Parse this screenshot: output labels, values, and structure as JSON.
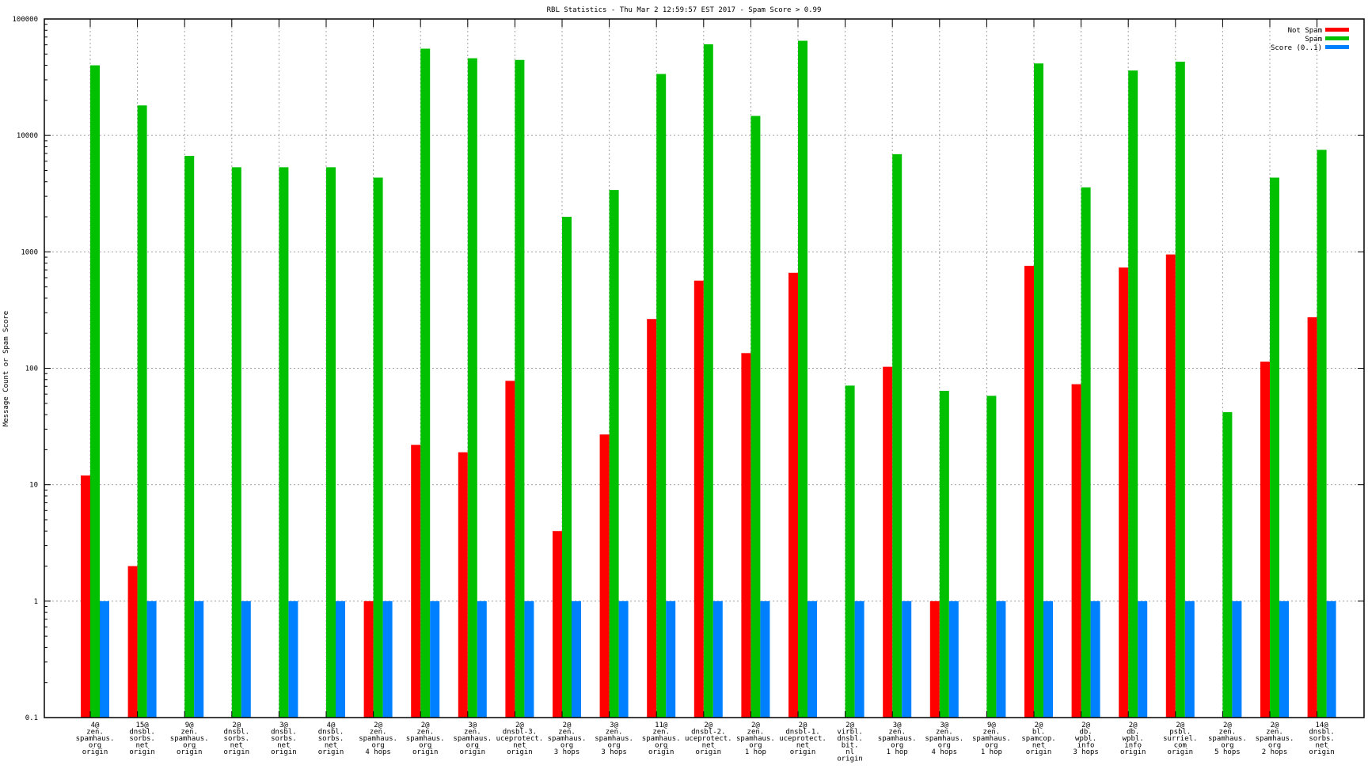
{
  "chart_data": {
    "type": "bar",
    "title": "RBL Statistics - Thu Mar  2 12:59:57 EST 2017 - Spam Score > 0.99",
    "xlabel": "",
    "ylabel": "Message Count or Spam Score",
    "yscale": "log",
    "ylim": [
      0.1,
      100000
    ],
    "yticks": [
      "0.1",
      "1",
      "10",
      "100",
      "1000",
      "10000",
      "100000"
    ],
    "grid": true,
    "legend_position": "top-right",
    "categories": [
      [
        "4@",
        "zen.",
        "spamhaus.",
        "org",
        "origin"
      ],
      [
        "15@",
        "dnsbl.",
        "sorbs.",
        "net",
        "origin"
      ],
      [
        "9@",
        "zen.",
        "spamhaus.",
        "org",
        "origin"
      ],
      [
        "2@",
        "dnsbl.",
        "sorbs.",
        "net",
        "origin"
      ],
      [
        "3@",
        "dnsbl.",
        "sorbs.",
        "net",
        "origin"
      ],
      [
        "4@",
        "dnsbl.",
        "sorbs.",
        "net",
        "origin"
      ],
      [
        "2@",
        "zen.",
        "spamhaus.",
        "org",
        "4 hops"
      ],
      [
        "2@",
        "zen.",
        "spamhaus.",
        "org",
        "origin"
      ],
      [
        "3@",
        "zen.",
        "spamhaus.",
        "org",
        "origin"
      ],
      [
        "2@",
        "dnsbl-3.",
        "uceprotect.",
        "net",
        "origin"
      ],
      [
        "2@",
        "zen.",
        "spamhaus.",
        "org",
        "3 hops"
      ],
      [
        "3@",
        "zen.",
        "spamhaus.",
        "org",
        "3 hops"
      ],
      [
        "11@",
        "zen.",
        "spamhaus.",
        "org",
        "origin"
      ],
      [
        "2@",
        "dnsbl-2.",
        "uceprotect.",
        "net",
        "origin"
      ],
      [
        "2@",
        "zen.",
        "spamhaus.",
        "org",
        "1 hop"
      ],
      [
        "2@",
        "dnsbl-1.",
        "uceprotect.",
        "net",
        "origin"
      ],
      [
        "2@",
        "virbl.",
        "dnsbl.",
        "bit.",
        "nl",
        "origin"
      ],
      [
        "3@",
        "zen.",
        "spamhaus.",
        "org",
        "1 hop"
      ],
      [
        "3@",
        "zen.",
        "spamhaus.",
        "org",
        "4 hops"
      ],
      [
        "9@",
        "zen.",
        "spamhaus.",
        "org",
        "1 hop"
      ],
      [
        "2@",
        "bl.",
        "spamcop.",
        "net",
        "origin"
      ],
      [
        "2@",
        "db.",
        "wpbl.",
        "info",
        "3 hops"
      ],
      [
        "2@",
        "db.",
        "wpbl.",
        "info",
        "origin"
      ],
      [
        "2@",
        "psbl.",
        "surriel.",
        "com",
        "origin"
      ],
      [
        "2@",
        "zen.",
        "spamhaus.",
        "org",
        "5 hops"
      ],
      [
        "2@",
        "zen.",
        "spamhaus.",
        "org",
        "2 hops"
      ],
      [
        "14@",
        "dnsbl.",
        "sorbs.",
        "net",
        "origin"
      ]
    ],
    "series": [
      {
        "name": "Not Spam",
        "color": "#ff0000",
        "values": [
          12,
          2,
          null,
          null,
          null,
          null,
          1,
          22,
          19,
          78,
          4,
          27,
          265,
          566,
          135,
          661,
          null,
          103,
          1,
          null,
          759,
          73,
          733,
          950,
          null,
          114,
          274
        ]
      },
      {
        "name": "Spam",
        "color": "#00c000",
        "values": [
          40000,
          18100,
          6670,
          5330,
          5330,
          5330,
          4340,
          55600,
          46000,
          44500,
          2000,
          3400,
          33700,
          60600,
          14700,
          65000,
          71,
          6900,
          64,
          58,
          41500,
          3580,
          36100,
          43000,
          42,
          4340,
          7520
        ]
      },
      {
        "name": "Score (0..1)",
        "color": "#0080ff",
        "values": [
          1,
          1,
          1,
          1,
          1,
          1,
          1,
          1,
          1,
          1,
          1,
          1,
          1,
          1,
          1,
          1,
          1,
          1,
          1,
          1,
          1,
          1,
          1,
          1,
          1,
          1,
          1
        ]
      }
    ]
  }
}
